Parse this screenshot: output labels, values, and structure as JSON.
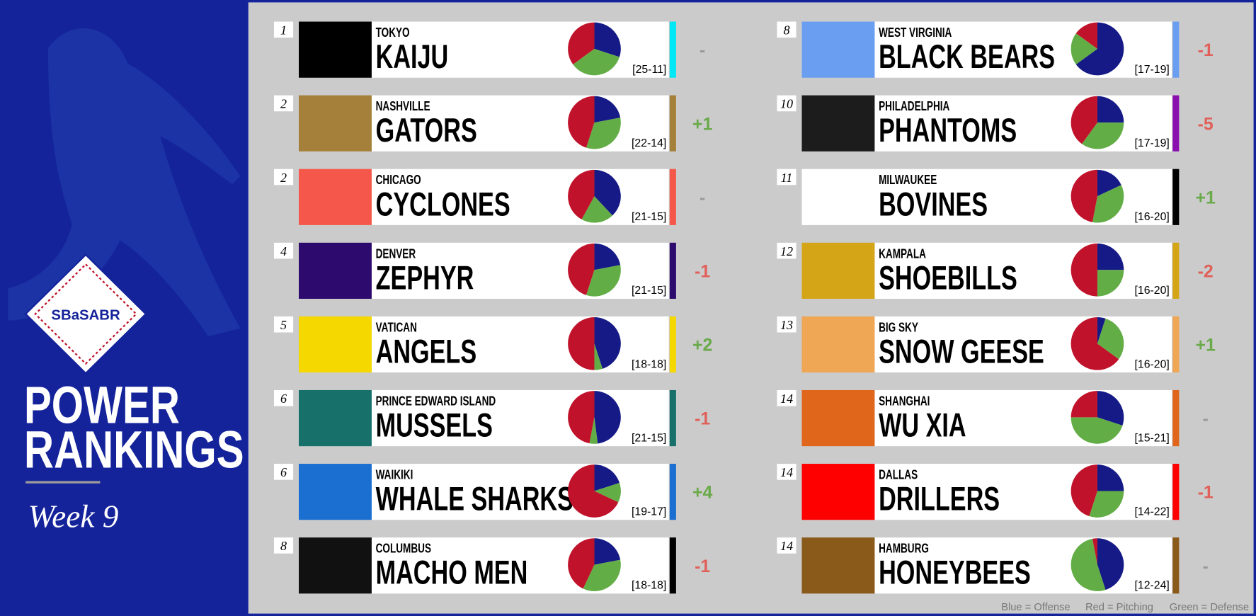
{
  "header": {
    "logo": "SBaSABR",
    "title_line1": "POWER",
    "title_line2": "RANKINGS",
    "week": "Week 9"
  },
  "legend": [
    "Blue = Offense",
    "Red = Pitching",
    "Green = Defense"
  ],
  "pie_colors": {
    "offense": "#151a86",
    "pitching": "#c0132b",
    "defense": "#63ad46"
  },
  "teams": [
    {
      "rank": "1",
      "city": "TOKYO",
      "name": "KAIJU",
      "record": "[25-11]",
      "change": "-",
      "color": "#00e8f5",
      "logo_bg": "#000000",
      "offense": 30,
      "defense": 35,
      "pitching": 35
    },
    {
      "rank": "2",
      "city": "NASHVILLE",
      "name": "GATORS",
      "record": "[22-14]",
      "change": "+1",
      "color": "#a5803a",
      "logo_bg": "#a5803a",
      "offense": 22,
      "defense": 33,
      "pitching": 45
    },
    {
      "rank": "2",
      "city": "CHICAGO",
      "name": "CYCLONES",
      "record": "[21-15]",
      "change": "-",
      "color": "#f5584a",
      "logo_bg": "#f5584a",
      "offense": 38,
      "defense": 20,
      "pitching": 42
    },
    {
      "rank": "4",
      "city": "DENVER",
      "name": "ZEPHYR",
      "record": "[21-15]",
      "change": "-1",
      "color": "#2d0a6e",
      "logo_bg": "#2d0a6e",
      "offense": 22,
      "defense": 33,
      "pitching": 45
    },
    {
      "rank": "5",
      "city": "VATICAN",
      "name": "ANGELS",
      "record": "[18-18]",
      "change": "+2",
      "color": "#f5d800",
      "logo_bg": "#f5d800",
      "offense": 45,
      "defense": 5,
      "pitching": 50
    },
    {
      "rank": "6",
      "city": "PRINCE EDWARD ISLAND",
      "name": "MUSSELS",
      "record": "[21-15]",
      "change": "-1",
      "color": "#17706a",
      "logo_bg": "#17706a",
      "offense": 48,
      "defense": 5,
      "pitching": 47
    },
    {
      "rank": "6",
      "city": "WAIKIKI",
      "name": "WHALE SHARKS",
      "record": "[19-17]",
      "change": "+4",
      "color": "#1a6fd0",
      "logo_bg": "#1a6fd0",
      "offense": 20,
      "defense": 12,
      "pitching": 68
    },
    {
      "rank": "8",
      "city": "COLUMBUS",
      "name": "MACHO MEN",
      "record": "[18-18]",
      "change": "-1",
      "color": "#000000",
      "logo_bg": "#111111",
      "offense": 22,
      "defense": 35,
      "pitching": 43
    },
    {
      "rank": "8",
      "city": "WEST VIRGINIA",
      "name": "BLACK BEARS",
      "record": "[17-19]",
      "change": "-1",
      "color": "#6a9ef0",
      "logo_bg": "#6a9ef0",
      "offense": 65,
      "defense": 20,
      "pitching": 15
    },
    {
      "rank": "10",
      "city": "PHILADELPHIA",
      "name": "PHANTOMS",
      "record": "[17-19]",
      "change": "-5",
      "color": "#8a10b0",
      "logo_bg": "#1c1c1c",
      "offense": 25,
      "defense": 35,
      "pitching": 40
    },
    {
      "rank": "11",
      "city": "MILWAUKEE",
      "name": "BOVINES",
      "record": "[16-20]",
      "change": "+1",
      "color": "#000000",
      "logo_bg": "#ffffff",
      "offense": 18,
      "defense": 35,
      "pitching": 47
    },
    {
      "rank": "12",
      "city": "KAMPALA",
      "name": "SHOEBILLS",
      "record": "[16-20]",
      "change": "-2",
      "color": "#d4a617",
      "logo_bg": "#d4a617",
      "offense": 25,
      "defense": 25,
      "pitching": 50
    },
    {
      "rank": "13",
      "city": "BIG SKY",
      "name": "SNOW GEESE",
      "record": "[16-20]",
      "change": "+1",
      "color": "#efa655",
      "logo_bg": "#efa655",
      "offense": 5,
      "defense": 30,
      "pitching": 65
    },
    {
      "rank": "14",
      "city": "SHANGHAI",
      "name": "WU XIA",
      "record": "[15-21]",
      "change": "-",
      "color": "#e0661c",
      "logo_bg": "#e0661c",
      "offense": 30,
      "defense": 45,
      "pitching": 25
    },
    {
      "rank": "14",
      "city": "DALLAS",
      "name": "DRILLERS",
      "record": "[14-22]",
      "change": "-1",
      "color": "#ff0000",
      "logo_bg": "#ff0000",
      "offense": 25,
      "defense": 30,
      "pitching": 45
    },
    {
      "rank": "14",
      "city": "HAMBURG",
      "name": "HONEYBEES",
      "record": "[12-24]",
      "change": "-",
      "color": "#8a5a1a",
      "logo_bg": "#8a5a1a",
      "offense": 45,
      "defense": 52,
      "pitching": 3
    }
  ]
}
